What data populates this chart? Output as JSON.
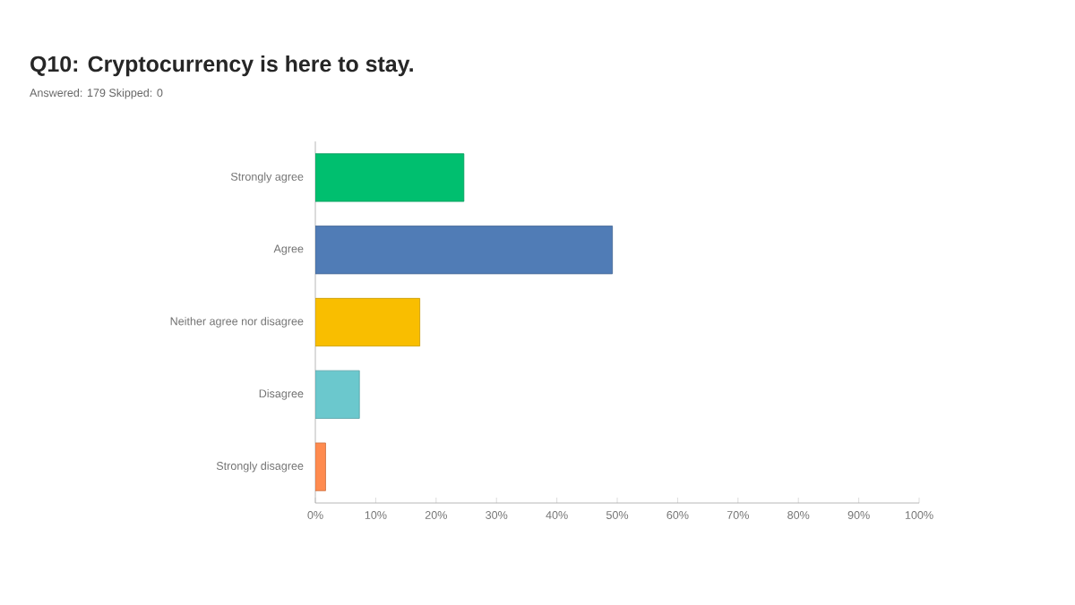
{
  "chart_data": {
    "type": "bar",
    "orientation": "horizontal",
    "title": "Q10: Cryptocurrency is here to stay.",
    "subtitle": "Answered: 179   Skipped: 0",
    "categories": [
      "Strongly agree",
      "Agree",
      "Neither agree nor disagree",
      "Disagree",
      "Strongly disagree"
    ],
    "values": [
      24.6,
      49.2,
      17.3,
      7.3,
      1.7
    ],
    "colors": [
      "#00bf6f",
      "#507cb6",
      "#f9be00",
      "#6bc8cd",
      "#ff8b4f"
    ],
    "xlim": [
      0,
      100
    ],
    "xticks": [
      {
        "value": 0,
        "label": "0%"
      },
      {
        "value": 10,
        "label": "10%"
      },
      {
        "value": 20,
        "label": "20%"
      },
      {
        "value": 30,
        "label": "30%"
      },
      {
        "value": 40,
        "label": "40%"
      },
      {
        "value": 50,
        "label": "50%"
      },
      {
        "value": 60,
        "label": "60%"
      },
      {
        "value": 70,
        "label": "70%"
      },
      {
        "value": 80,
        "label": "80%"
      },
      {
        "value": 90,
        "label": "90%"
      },
      {
        "value": 100,
        "label": "100%"
      }
    ],
    "grid": false
  }
}
